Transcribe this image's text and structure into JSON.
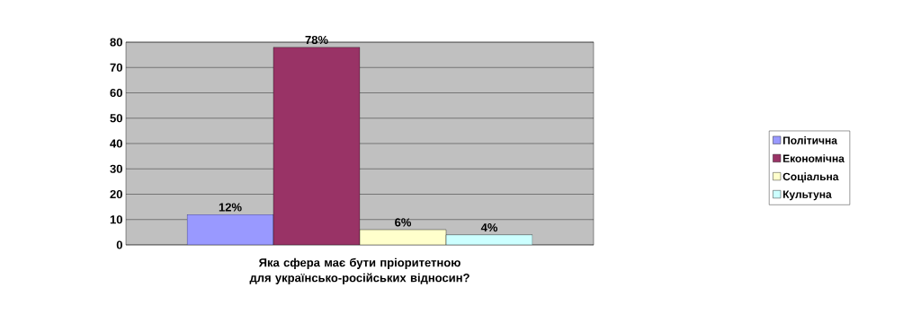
{
  "chart_data": {
    "type": "bar",
    "xlabel": "Яка сфера має бути пріоритетною для українсько-російських відносин?",
    "categories": [
      null
    ],
    "series": [
      {
        "name": "Політична",
        "color": "#9999ff",
        "values": [
          12
        ],
        "value_labels": [
          "12%"
        ]
      },
      {
        "name": "Економічна",
        "color": "#993366",
        "values": [
          78
        ],
        "value_labels": [
          "78%"
        ]
      },
      {
        "name": "Соціальна",
        "color": "#ffffcc",
        "values": [
          6
        ],
        "value_labels": [
          "6%"
        ]
      },
      {
        "name": "Культуна",
        "color": "#ccffff",
        "values": [
          4
        ],
        "value_labels": [
          "4%"
        ]
      }
    ],
    "ylim": [
      0,
      80
    ],
    "yticks": [
      0,
      10,
      20,
      30,
      40,
      50,
      60,
      70,
      80
    ],
    "grid": "y",
    "legend": "right"
  }
}
